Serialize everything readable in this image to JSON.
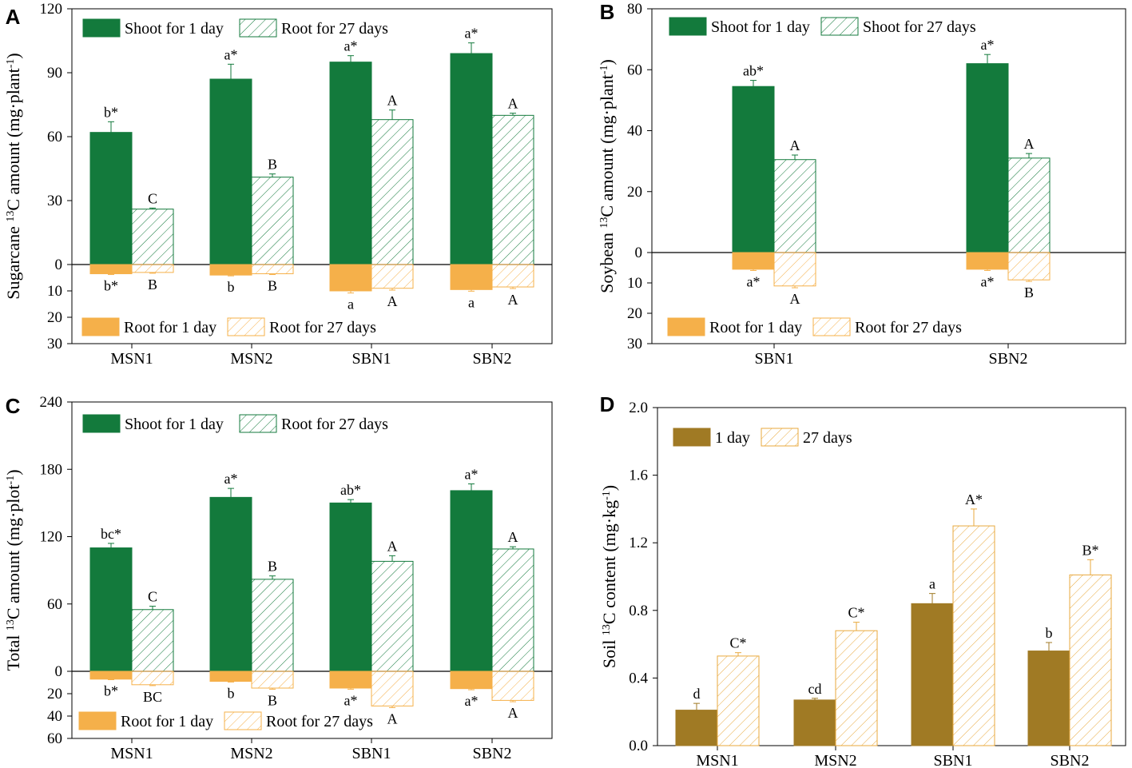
{
  "colors": {
    "shoot": "#137a3c",
    "root": "#f5b04a",
    "soil": "#a07a24",
    "soil_hatch": "#e8a93e"
  },
  "chart_data": [
    {
      "panel": "A",
      "type": "bar",
      "ylabel": {
        "pre": "Sugarcane ",
        "sup": "13",
        "post": "C amount (mg·plant",
        "unit_sup": "-1",
        "end": ")"
      },
      "categories": [
        "MSN1",
        "MSN2",
        "SBN1",
        "SBN2"
      ],
      "ylim_top": [
        0,
        120
      ],
      "ylim_bottom": [
        0,
        30
      ],
      "yticks_top": [
        0,
        30,
        60,
        90,
        120
      ],
      "yticks_bottom": [
        10,
        20,
        30
      ],
      "legend_top": [
        "Shoot for 1 day",
        "Root for 27 days"
      ],
      "legend_bottom": [
        "Root for 1 day",
        "Root for 27 days"
      ],
      "series_top": [
        {
          "name": "Shoot for 1 day",
          "style": "solid",
          "values": [
            62,
            87,
            95,
            99
          ],
          "errors": [
            5,
            7,
            3,
            5
          ],
          "labels": [
            "b*",
            "a*",
            "a*",
            "a*"
          ]
        },
        {
          "name": "Root for 27 days",
          "style": "hatch",
          "values": [
            26,
            41,
            68,
            70
          ],
          "errors": [
            0.5,
            1.5,
            4.5,
            1
          ],
          "labels": [
            "C",
            "B",
            "A",
            "A"
          ]
        }
      ],
      "series_bottom": [
        {
          "name": "Root for 1 day",
          "style": "solid",
          "values": [
            3.5,
            4,
            10,
            9.5
          ],
          "errors": [
            0.3,
            0.3,
            0.8,
            0.6
          ],
          "labels": [
            "b*",
            "b",
            "a",
            "a"
          ]
        },
        {
          "name": "Root for 27 days",
          "style": "hatch",
          "values": [
            3,
            3.5,
            9,
            8.5
          ],
          "errors": [
            0.3,
            0.3,
            0.7,
            0.6
          ],
          "labels": [
            "B",
            "B",
            "A",
            "A"
          ]
        }
      ]
    },
    {
      "panel": "B",
      "type": "bar",
      "ylabel": {
        "pre": "Soybean ",
        "sup": "13",
        "post": "C amount (mg·plant",
        "unit_sup": "-1",
        "end": ")"
      },
      "categories": [
        "SBN1",
        "SBN2"
      ],
      "ylim_top": [
        0,
        80
      ],
      "ylim_bottom": [
        0,
        30
      ],
      "yticks_top": [
        0,
        20,
        40,
        60,
        80
      ],
      "yticks_bottom": [
        10,
        20,
        30
      ],
      "legend_top": [
        "Shoot for 1 day",
        "Shoot for 27 days"
      ],
      "legend_bottom": [
        "Root for 1 day",
        "Root for 27 days"
      ],
      "series_top": [
        {
          "name": "Shoot for 1 day",
          "style": "solid",
          "values": [
            54.5,
            62
          ],
          "errors": [
            2,
            3
          ],
          "labels": [
            "ab*",
            "a*"
          ]
        },
        {
          "name": "Shoot for 27 days",
          "style": "hatch",
          "values": [
            30.5,
            31
          ],
          "errors": [
            1.5,
            1.5
          ],
          "labels": [
            "A",
            "A"
          ]
        }
      ],
      "series_bottom": [
        {
          "name": "Root for 1 day",
          "style": "solid",
          "values": [
            5.5,
            5.5
          ],
          "errors": [
            0.4,
            0.4
          ],
          "labels": [
            "a*",
            "a*"
          ]
        },
        {
          "name": "Root for 27 days",
          "style": "hatch",
          "values": [
            11,
            9
          ],
          "errors": [
            0.6,
            0.5
          ],
          "labels": [
            "A",
            "B"
          ]
        }
      ]
    },
    {
      "panel": "C",
      "type": "bar",
      "ylabel": {
        "pre": "Total ",
        "sup": "13",
        "post": "C amount (mg·plot",
        "unit_sup": "-1",
        "end": ")"
      },
      "categories": [
        "MSN1",
        "MSN2",
        "SBN1",
        "SBN2"
      ],
      "ylim_top": [
        0,
        240
      ],
      "ylim_bottom": [
        0,
        60
      ],
      "yticks_top": [
        0,
        60,
        120,
        180,
        240
      ],
      "yticks_bottom": [
        20,
        40,
        60
      ],
      "legend_top": [
        "Shoot for 1 day",
        "Root for 27 days"
      ],
      "legend_bottom": [
        "Root for 1 day",
        "Root for 27 days"
      ],
      "series_top": [
        {
          "name": "Shoot for 1 day",
          "style": "solid",
          "values": [
            110,
            155,
            150,
            161
          ],
          "errors": [
            4,
            8,
            3,
            6
          ],
          "labels": [
            "bc*",
            "a*",
            "ab*",
            "a*"
          ]
        },
        {
          "name": "Root for 27 days",
          "style": "hatch",
          "values": [
            55,
            82,
            98,
            109
          ],
          "errors": [
            3,
            3,
            5,
            2
          ],
          "labels": [
            "C",
            "B",
            "A",
            "A"
          ]
        }
      ],
      "series_bottom": [
        {
          "name": "Root for 1 day",
          "style": "solid",
          "values": [
            7,
            9,
            15,
            15.5
          ],
          "errors": [
            0.5,
            0.6,
            1,
            1
          ],
          "labels": [
            "b*",
            "b",
            "a*",
            "a*"
          ]
        },
        {
          "name": "Root for 27 days",
          "style": "hatch",
          "values": [
            12,
            15,
            31,
            26
          ],
          "errors": [
            0.8,
            1,
            1.5,
            1.2
          ],
          "labels": [
            "BC",
            "B",
            "A",
            "A"
          ]
        }
      ]
    },
    {
      "panel": "D",
      "type": "bar",
      "ylabel": {
        "pre": "Soil ",
        "sup": "13",
        "post": "C content (mg·kg",
        "unit_sup": "-1",
        "end": ")"
      },
      "categories": [
        "MSN1",
        "MSN2",
        "SBN1",
        "SBN2"
      ],
      "ylim": [
        0,
        2.0
      ],
      "yticks": [
        "0.0",
        "0.4",
        "0.8",
        "1.2",
        "1.6",
        "2.0"
      ],
      "legend": [
        "1 day",
        "27 days"
      ],
      "series": [
        {
          "name": "1 day",
          "style": "solid",
          "values": [
            0.21,
            0.27,
            0.84,
            0.56
          ],
          "errors": [
            0.04,
            0.01,
            0.06,
            0.05
          ],
          "labels": [
            "d",
            "cd",
            "a",
            "b"
          ]
        },
        {
          "name": "27 days",
          "style": "hatch",
          "values": [
            0.53,
            0.68,
            1.3,
            1.01
          ],
          "errors": [
            0.02,
            0.05,
            0.1,
            0.09
          ],
          "labels": [
            "C*",
            "C*",
            "A*",
            "B*"
          ]
        }
      ]
    }
  ]
}
